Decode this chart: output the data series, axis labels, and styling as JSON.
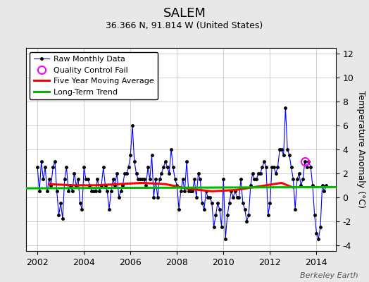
{
  "title": "SALEM",
  "subtitle": "36.366 N, 91.814 W (United States)",
  "ylabel": "Temperature Anomaly (°C)",
  "watermark": "Berkeley Earth",
  "xlim": [
    2001.5,
    2014.83
  ],
  "ylim": [
    -4.5,
    12.5
  ],
  "yticks": [
    -4,
    -2,
    0,
    2,
    4,
    6,
    8,
    10,
    12
  ],
  "xticks": [
    2002,
    2004,
    2006,
    2008,
    2010,
    2012,
    2014
  ],
  "raw_data": {
    "x": [
      2002.0,
      2002.083,
      2002.167,
      2002.25,
      2002.333,
      2002.417,
      2002.5,
      2002.583,
      2002.667,
      2002.75,
      2002.833,
      2002.917,
      2003.0,
      2003.083,
      2003.167,
      2003.25,
      2003.333,
      2003.417,
      2003.5,
      2003.583,
      2003.667,
      2003.75,
      2003.833,
      2003.917,
      2004.0,
      2004.083,
      2004.167,
      2004.25,
      2004.333,
      2004.417,
      2004.5,
      2004.583,
      2004.667,
      2004.75,
      2004.833,
      2004.917,
      2005.0,
      2005.083,
      2005.167,
      2005.25,
      2005.333,
      2005.417,
      2005.5,
      2005.583,
      2005.667,
      2005.75,
      2005.833,
      2005.917,
      2006.0,
      2006.083,
      2006.167,
      2006.25,
      2006.333,
      2006.417,
      2006.5,
      2006.583,
      2006.667,
      2006.75,
      2006.833,
      2006.917,
      2007.0,
      2007.083,
      2007.167,
      2007.25,
      2007.333,
      2007.417,
      2007.5,
      2007.583,
      2007.667,
      2007.75,
      2007.833,
      2007.917,
      2008.0,
      2008.083,
      2008.167,
      2008.25,
      2008.333,
      2008.417,
      2008.5,
      2008.583,
      2008.667,
      2008.75,
      2008.833,
      2008.917,
      2009.0,
      2009.083,
      2009.167,
      2009.25,
      2009.333,
      2009.417,
      2009.5,
      2009.583,
      2009.667,
      2009.75,
      2009.833,
      2009.917,
      2010.0,
      2010.083,
      2010.167,
      2010.25,
      2010.333,
      2010.417,
      2010.5,
      2010.583,
      2010.667,
      2010.75,
      2010.833,
      2010.917,
      2011.0,
      2011.083,
      2011.167,
      2011.25,
      2011.333,
      2011.417,
      2011.5,
      2011.583,
      2011.667,
      2011.75,
      2011.833,
      2011.917,
      2012.0,
      2012.083,
      2012.167,
      2012.25,
      2012.333,
      2012.417,
      2012.5,
      2012.583,
      2012.667,
      2012.75,
      2012.833,
      2012.917,
      2013.0,
      2013.083,
      2013.167,
      2013.25,
      2013.333,
      2013.417,
      2013.5,
      2013.583,
      2013.667,
      2013.75,
      2013.833,
      2013.917,
      2014.0,
      2014.083,
      2014.167,
      2014.25,
      2014.333,
      2014.417
    ],
    "y": [
      2.5,
      0.5,
      3.0,
      1.5,
      2.5,
      0.5,
      1.5,
      1.0,
      2.5,
      3.0,
      0.5,
      -1.5,
      -0.5,
      -1.8,
      1.5,
      2.5,
      0.5,
      1.0,
      0.5,
      2.0,
      1.0,
      1.5,
      -0.5,
      -1.0,
      2.5,
      1.5,
      1.5,
      1.0,
      0.5,
      0.5,
      0.5,
      1.5,
      0.5,
      1.0,
      2.5,
      1.0,
      0.5,
      -1.0,
      0.5,
      1.5,
      1.0,
      2.0,
      0.0,
      0.5,
      1.0,
      2.0,
      2.0,
      2.5,
      3.5,
      6.0,
      3.0,
      2.0,
      1.5,
      1.5,
      1.5,
      1.5,
      1.0,
      2.5,
      1.5,
      3.5,
      0.0,
      1.5,
      0.0,
      1.5,
      2.0,
      2.5,
      3.0,
      2.5,
      2.0,
      4.0,
      2.5,
      1.5,
      1.0,
      -1.0,
      0.5,
      1.5,
      0.5,
      3.0,
      0.5,
      0.5,
      0.5,
      1.5,
      0.0,
      2.0,
      1.5,
      -0.5,
      -1.0,
      0.5,
      0.0,
      0.0,
      -0.5,
      -2.5,
      -1.5,
      -0.5,
      -1.0,
      -2.5,
      1.5,
      -3.5,
      -1.5,
      -0.5,
      0.5,
      0.0,
      0.5,
      0.0,
      0.0,
      1.5,
      -0.5,
      -1.0,
      -2.0,
      -1.5,
      1.0,
      2.0,
      1.5,
      1.5,
      2.0,
      2.0,
      2.5,
      3.0,
      2.5,
      -1.5,
      -0.5,
      2.5,
      2.5,
      2.0,
      2.5,
      4.0,
      4.0,
      3.5,
      7.5,
      4.0,
      3.5,
      2.5,
      1.5,
      -1.0,
      1.5,
      2.0,
      1.0,
      1.5,
      3.0,
      2.5,
      3.0,
      2.5,
      1.0,
      -1.5,
      -3.0,
      -3.5,
      -2.5,
      1.0,
      0.5,
      1.0
    ]
  },
  "qc_fail": {
    "x": [
      2013.5
    ],
    "y": [
      3.0
    ]
  },
  "moving_avg": {
    "x": [
      2002.5,
      2003.5,
      2004.5,
      2005.5,
      2006.5,
      2007.5,
      2008.5,
      2009.5,
      2010.5,
      2011.5,
      2012.5,
      2013.0
    ],
    "y": [
      1.1,
      1.0,
      1.0,
      1.1,
      1.2,
      1.1,
      0.7,
      0.5,
      0.6,
      0.9,
      1.2,
      0.8
    ]
  },
  "trend": {
    "x": [
      2001.5,
      2014.83
    ],
    "y": [
      0.75,
      0.85
    ]
  },
  "bg_color": "#e8e8e8",
  "plot_bg_color": "#ffffff",
  "raw_line_color": "#0000ff",
  "raw_marker_color": "#000000",
  "qc_color": "#ff00ff",
  "moving_avg_color": "#ff0000",
  "trend_color": "#00bb00",
  "title_fontsize": 13,
  "subtitle_fontsize": 9,
  "ylabel_fontsize": 9,
  "tick_fontsize": 9,
  "legend_fontsize": 8,
  "watermark_fontsize": 8
}
